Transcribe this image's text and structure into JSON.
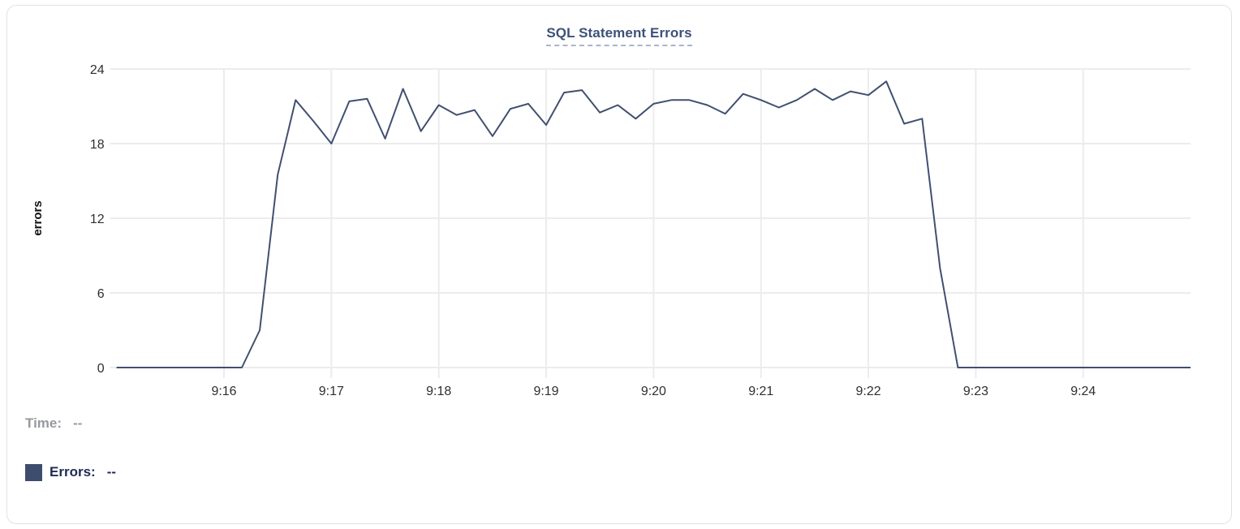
{
  "chart": {
    "title": "SQL Statement Errors",
    "ylabel": "errors",
    "legend": {
      "time_label": "Time:",
      "time_value": "--",
      "series_label": "Errors:",
      "series_value": "--"
    }
  },
  "colors": {
    "series_line": "#40506f",
    "legend_swatch": "#3e4d6e",
    "title_blue": "#3c5277",
    "grid": "#ececec",
    "tick_text": "#2e2e2e",
    "axis_title_text": "#111111",
    "muted_gray": "#97999e",
    "dark_navy_text": "#1e2b52"
  },
  "chart_data": {
    "type": "line",
    "title": "SQL Statement Errors",
    "xlabel": "",
    "ylabel": "errors",
    "x_ticks": [
      "9:16",
      "9:17",
      "9:18",
      "9:19",
      "9:20",
      "9:21",
      "9:22",
      "9:23",
      "9:24"
    ],
    "y_ticks": [
      0,
      6,
      12,
      18,
      24
    ],
    "ylim": [
      0,
      24
    ],
    "x_start": "9:15:00",
    "x_end": "9:25:00",
    "interval_seconds": 10,
    "grid": true,
    "legend_position": "bottom-left",
    "series": [
      {
        "name": "Errors",
        "color": "#40506f",
        "values": [
          0,
          0,
          0,
          0,
          0,
          0,
          0,
          0,
          3,
          15.5,
          21.5,
          19.8,
          18,
          21.4,
          21.6,
          18.4,
          22.4,
          19,
          21.1,
          20.3,
          20.7,
          18.6,
          20.8,
          21.2,
          19.5,
          22.1,
          22.3,
          20.5,
          21.1,
          20,
          21.2,
          21.5,
          21.5,
          21.1,
          20.4,
          22,
          21.5,
          20.9,
          21.5,
          22.4,
          21.5,
          22.2,
          21.9,
          23,
          19.6,
          20,
          8,
          0,
          0,
          0,
          0,
          0,
          0,
          0,
          0,
          0,
          0,
          0,
          0,
          0,
          0
        ]
      }
    ]
  }
}
